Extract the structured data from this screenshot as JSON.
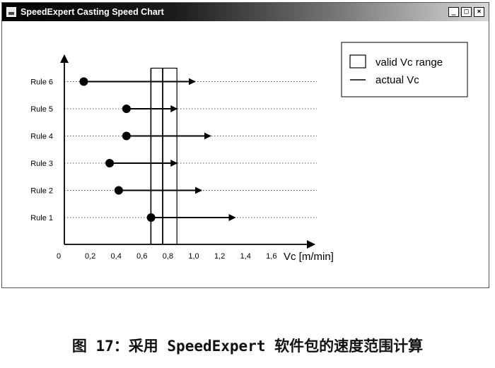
{
  "window": {
    "title": "SpeedExpert Casting Speed Chart",
    "buttons": {
      "minimize": "_",
      "maximize": "□",
      "close": "×"
    }
  },
  "legend": {
    "range_label": "valid Vc range",
    "actual_label": "actual Vc"
  },
  "chart_data": {
    "type": "scatter",
    "xlabel": "Vc [m/min]",
    "xlim": [
      0,
      1.9
    ],
    "x_ticks": [
      "0",
      "0,2",
      "0,4",
      "0,6",
      "0,8",
      "1,0",
      "1,2",
      "1,4",
      "1,6"
    ],
    "x_tick_values": [
      0,
      0.2,
      0.4,
      0.6,
      0.8,
      1.0,
      1.2,
      1.4,
      1.6
    ],
    "categories": [
      "Rule 1",
      "Rule 2",
      "Rule 3",
      "Rule 4",
      "Rule 5",
      "Rule 6"
    ],
    "rules": [
      {
        "label": "Rule 1",
        "start": 0.67,
        "end": 1.32
      },
      {
        "label": "Rule 2",
        "start": 0.42,
        "end": 1.06
      },
      {
        "label": "Rule 3",
        "start": 0.35,
        "end": 0.87
      },
      {
        "label": "Rule 4",
        "start": 0.48,
        "end": 1.13
      },
      {
        "label": "Rule 5",
        "start": 0.48,
        "end": 0.87
      },
      {
        "label": "Rule 6",
        "start": 0.15,
        "end": 1.01
      }
    ],
    "valid_range": [
      0.67,
      0.87
    ],
    "actual_vc": 0.76,
    "dotted_guides_to": 1.95,
    "legend_position": "top-right"
  },
  "caption": "图 17：采用 SpeedExpert 软件包的速度范围计算"
}
